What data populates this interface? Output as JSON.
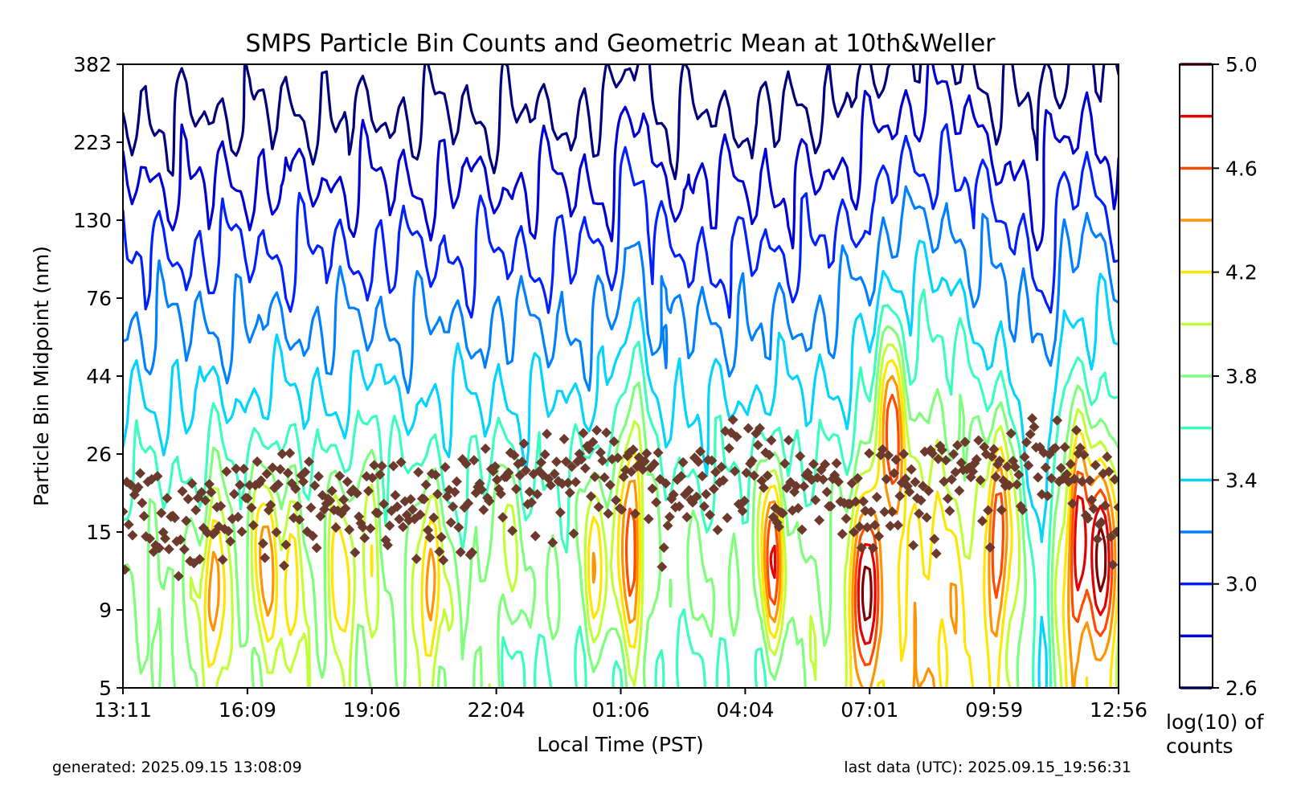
{
  "chart_data": {
    "type": "contour",
    "title": "SMPS Particle Bin Counts and Geometric Mean at 10th&Weller",
    "xlabel": "Local Time (PST)",
    "ylabel": "Particle Bin Midpoint (nm)",
    "x_ticks": [
      "13:11",
      "16:09",
      "19:06",
      "22:04",
      "01:06",
      "04:04",
      "07:01",
      "09:59",
      "12:56"
    ],
    "y_ticks": [
      382,
      223,
      130,
      76,
      44,
      26,
      15,
      9,
      5
    ],
    "y_scale": "log",
    "ylim": [
      5,
      382
    ],
    "xlim_hours": [
      0,
      23.75
    ],
    "colorbar": {
      "label_line1": "log(10) of",
      "label_line2": "counts",
      "ticks": [
        "5.0",
        "4.6",
        "4.2",
        "3.8",
        "3.4",
        "3.0",
        "2.6"
      ],
      "range": [
        2.6,
        5.0
      ],
      "levels": [
        2.6,
        2.8,
        3.0,
        3.2,
        3.4,
        3.6,
        3.8,
        4.0,
        4.2,
        4.4,
        4.6,
        4.8,
        5.0
      ],
      "level_colors": [
        "#00007f",
        "#0000d5",
        "#0020ff",
        "#0080ff",
        "#00d4ff",
        "#3affbc",
        "#7dff7a",
        "#c0ff36",
        "#ffe500",
        "#ff9400",
        "#ff4a00",
        "#e40000",
        "#7f0000"
      ]
    },
    "intensity_events": [
      {
        "hour": 2.2,
        "peak": 4.65,
        "nm": 10.5
      },
      {
        "hour": 3.4,
        "peak": 4.6,
        "nm": 13
      },
      {
        "hour": 4.0,
        "peak": 4.4,
        "nm": 11
      },
      {
        "hour": 5.2,
        "peak": 4.45,
        "nm": 11
      },
      {
        "hour": 5.9,
        "peak": 4.3,
        "nm": 18
      },
      {
        "hour": 7.3,
        "peak": 4.6,
        "nm": 10
      },
      {
        "hour": 9.1,
        "peak": 4.2,
        "nm": 15
      },
      {
        "hour": 11.3,
        "peak": 4.45,
        "nm": 12
      },
      {
        "hour": 12.1,
        "peak": 4.7,
        "nm": 16
      },
      {
        "hour": 15.5,
        "peak": 4.85,
        "nm": 13
      },
      {
        "hour": 17.7,
        "peak": 5.05,
        "nm": 9.5
      },
      {
        "hour": 18.3,
        "peak": 4.9,
        "nm": 30
      },
      {
        "hour": 20.9,
        "peak": 4.85,
        "nm": 15
      },
      {
        "hour": 22.8,
        "peak": 4.85,
        "nm": 14
      },
      {
        "hour": 23.4,
        "peak": 5.0,
        "nm": 13
      }
    ],
    "geometric_mean": {
      "marker": "diamond",
      "color": "#6b3a2c",
      "trend_hours": [
        0,
        2,
        4,
        6,
        8,
        9,
        10,
        11,
        12,
        13,
        14,
        15,
        16,
        17,
        18,
        19,
        20,
        21,
        22,
        23,
        23.75
      ],
      "trend_nm": [
        16,
        17,
        19,
        18,
        19,
        20,
        22,
        23,
        24,
        17,
        23,
        24,
        21,
        17,
        19,
        21,
        22,
        22,
        25,
        22,
        18
      ]
    },
    "grid": false
  },
  "footer": {
    "generated": "generated: 2025.09.15 13:08:09",
    "last_data": "last data (UTC): 2025.09.15_19:56:31"
  }
}
